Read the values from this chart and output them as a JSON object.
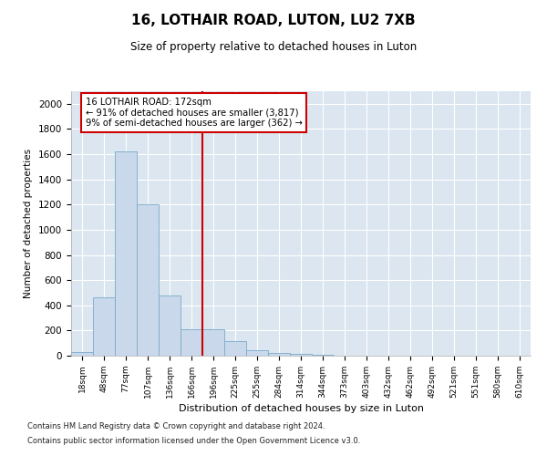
{
  "title1": "16, LOTHAIR ROAD, LUTON, LU2 7XB",
  "title2": "Size of property relative to detached houses in Luton",
  "xlabel": "Distribution of detached houses by size in Luton",
  "ylabel": "Number of detached properties",
  "footnote1": "Contains HM Land Registry data © Crown copyright and database right 2024.",
  "footnote2": "Contains public sector information licensed under the Open Government Licence v3.0.",
  "categories": [
    "18sqm",
    "48sqm",
    "77sqm",
    "107sqm",
    "136sqm",
    "166sqm",
    "196sqm",
    "225sqm",
    "255sqm",
    "284sqm",
    "314sqm",
    "344sqm",
    "373sqm",
    "403sqm",
    "432sqm",
    "462sqm",
    "492sqm",
    "521sqm",
    "551sqm",
    "580sqm",
    "610sqm"
  ],
  "values": [
    30,
    460,
    1620,
    1200,
    480,
    210,
    210,
    115,
    40,
    25,
    18,
    8,
    3,
    2,
    1,
    1,
    0,
    0,
    0,
    0,
    0
  ],
  "bar_color": "#c9d9eb",
  "bar_edge_color": "#7aaac8",
  "ylim": [
    0,
    2100
  ],
  "yticks": [
    0,
    200,
    400,
    600,
    800,
    1000,
    1200,
    1400,
    1600,
    1800,
    2000
  ],
  "vline_x": 5.5,
  "vline_color": "#cc0000",
  "annotation_line1": "16 LOTHAIR ROAD: 172sqm",
  "annotation_line2": "← 91% of detached houses are smaller (3,817)",
  "annotation_line3": "9% of semi-detached houses are larger (362) →",
  "annotation_box_color": "#cc0000",
  "bg_color": "#ffffff",
  "plot_bg_color": "#dce6f0"
}
